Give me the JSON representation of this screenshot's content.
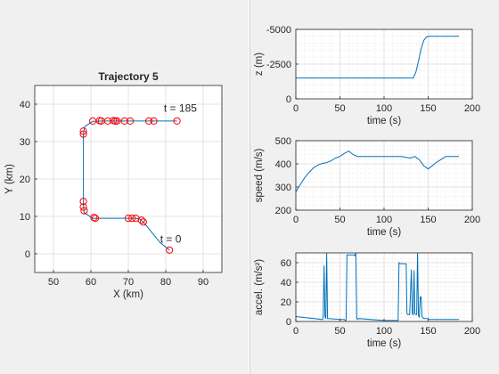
{
  "chart_data": [
    {
      "type": "scatter",
      "title": "Trajectory 5",
      "xlabel": "X (km)",
      "ylabel": "Y (km)",
      "xlim": [
        45,
        95
      ],
      "ylim": [
        -5,
        45
      ],
      "xticks": [
        50,
        60,
        70,
        80,
        90
      ],
      "yticks": [
        0,
        10,
        20,
        30,
        40
      ],
      "grid": true,
      "series": [
        {
          "mode": "line",
          "color": "#0072bd",
          "x": [
            81,
            78.5,
            74,
            73,
            72,
            70,
            61.5,
            60.5,
            58.2,
            58,
            58,
            58,
            58.3,
            60.5,
            63,
            66,
            83
          ],
          "y": [
            1,
            3,
            8.5,
            9.3,
            9.5,
            9.5,
            9.5,
            9.5,
            11,
            13,
            24,
            32,
            34,
            35.4,
            35.5,
            35.5,
            35.5
          ]
        },
        {
          "mode": "markers",
          "color": "#ff0000",
          "x": [
            81,
            74,
            73.5,
            72,
            71,
            70,
            61.2,
            60.8,
            58.2,
            58,
            58,
            58,
            58,
            60.5,
            62.3,
            62.8,
            64.5,
            66,
            66.5,
            67,
            69,
            70.5,
            75.5,
            76.8,
            83
          ],
          "y": [
            1,
            8.5,
            9,
            9.5,
            9.5,
            9.5,
            9.5,
            9.7,
            11.5,
            12.5,
            14,
            32,
            32.8,
            35.5,
            35.6,
            35.5,
            35.5,
            35.6,
            35.5,
            35.5,
            35.5,
            35.5,
            35.5,
            35.5,
            35.5
          ]
        }
      ],
      "annotations": [
        {
          "text": "t = 185",
          "x": 79.5,
          "y": 38
        },
        {
          "text": "t = 0",
          "x": 78.5,
          "y": 3
        }
      ]
    },
    {
      "type": "line",
      "xlabel": "time (s)",
      "ylabel": "z (m)",
      "xlim": [
        0,
        200
      ],
      "ylim": [
        -5000,
        0
      ],
      "y_reversed": true,
      "xticks": [
        0,
        50,
        100,
        150,
        200
      ],
      "yticks": [
        -5000,
        -2500,
        0
      ],
      "grid": true,
      "minor_grid": true,
      "color": "#0072bd",
      "x": [
        0,
        133,
        136,
        139,
        142,
        145,
        148,
        151,
        160,
        185
      ],
      "y": [
        -1500,
        -1500,
        -1900,
        -2700,
        -3600,
        -4200,
        -4450,
        -4500,
        -4500,
        -4500
      ]
    },
    {
      "type": "line",
      "xlabel": "time (s)",
      "ylabel": "speed (m/s)",
      "xlim": [
        0,
        200
      ],
      "ylim": [
        200,
        500
      ],
      "xticks": [
        0,
        50,
        100,
        150,
        200
      ],
      "yticks": [
        200,
        300,
        400,
        500
      ],
      "grid": true,
      "minor_grid": true,
      "color": "#0072bd",
      "x": [
        0,
        5,
        10,
        15,
        20,
        25,
        30,
        35,
        40,
        45,
        50,
        55,
        60,
        65,
        70,
        75,
        80,
        90,
        100,
        110,
        120,
        125,
        130,
        135,
        140,
        145,
        150,
        155,
        160,
        165,
        170,
        175,
        185
      ],
      "y": [
        280,
        310,
        340,
        363,
        383,
        395,
        402,
        405,
        413,
        425,
        432,
        445,
        455,
        440,
        432,
        432,
        432,
        432,
        432,
        432,
        432,
        428,
        425,
        432,
        418,
        392,
        378,
        393,
        408,
        420,
        432,
        432,
        432
      ]
    },
    {
      "type": "line",
      "xlabel": "time (s)",
      "ylabel": "accel. (m/s²)",
      "xlim": [
        0,
        200
      ],
      "ylim": [
        0,
        70
      ],
      "xticks": [
        0,
        50,
        100,
        150,
        200
      ],
      "yticks": [
        0,
        20,
        40,
        60
      ],
      "grid": true,
      "minor_grid": true,
      "color": "#0072bd",
      "x": [
        0,
        30,
        31,
        32,
        33,
        34,
        35,
        36,
        37,
        50,
        55,
        56,
        57,
        58,
        66,
        67,
        68,
        69,
        70,
        71,
        100,
        115,
        116,
        117,
        118,
        125,
        126,
        127,
        129,
        131,
        132,
        133,
        134,
        135,
        136,
        137,
        138,
        139,
        140,
        141,
        142,
        143,
        144,
        145,
        150,
        151,
        160,
        185
      ],
      "y": [
        5,
        2,
        3,
        57,
        5,
        3,
        70,
        3,
        3,
        2,
        2,
        1,
        1,
        68,
        68,
        67,
        70,
        3,
        2,
        3,
        1,
        1,
        1,
        60,
        59,
        59,
        8,
        7,
        7,
        53,
        8,
        7,
        52,
        8,
        7,
        7,
        70,
        6,
        4,
        25,
        25,
        5,
        4,
        3,
        3,
        2,
        2,
        2
      ]
    }
  ]
}
